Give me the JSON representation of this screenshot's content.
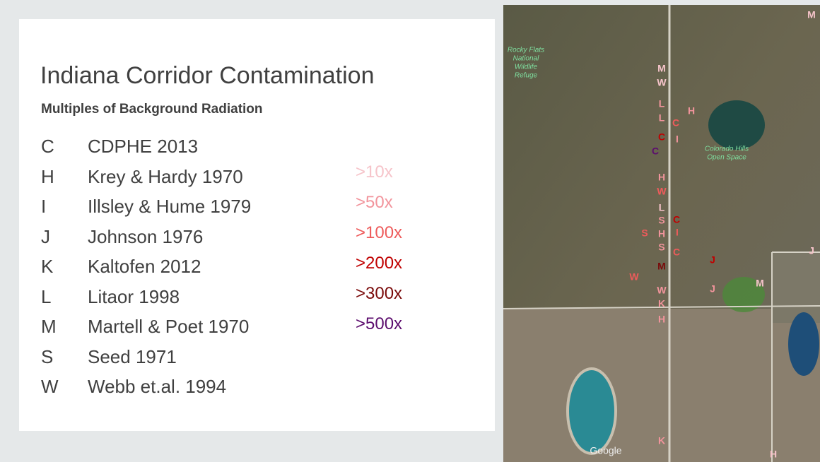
{
  "header": {
    "title": "Indiana Corridor Contamination",
    "subtitle": "Multiples of Background Radiation"
  },
  "sources": [
    {
      "code": "C",
      "name": "CDPHE 2013"
    },
    {
      "code": "H",
      "name": "Krey & Hardy 1970"
    },
    {
      "code": "I",
      "name": "Illsley & Hume 1979"
    },
    {
      "code": "J",
      "name": "Johnson 1976"
    },
    {
      "code": "K",
      "name": "Kaltofen 2012"
    },
    {
      "code": "L",
      "name": "Litaor 1998"
    },
    {
      "code": "M",
      "name": "Martell & Poet 1970"
    },
    {
      "code": "S",
      "name": "Seed 1971"
    },
    {
      "code": "W",
      "name": "Webb et.al. 1994"
    }
  ],
  "levels": [
    {
      "label": ">10x",
      "color": "#f6c4ca"
    },
    {
      "label": ">50x",
      "color": "#f2949c"
    },
    {
      "label": ">100x",
      "color": "#ee5b5b"
    },
    {
      "label": ">200x",
      "color": "#c00000"
    },
    {
      "label": ">300x",
      "color": "#7a0a0a"
    },
    {
      "label": ">500x",
      "color": "#5c0d6e"
    }
  ],
  "map": {
    "places": [
      "Rocky Flats",
      "National",
      "Wildlife",
      "Refuge",
      "Colorado Hills",
      "Open Space",
      "Google"
    ],
    "markers": [
      {
        "code": "M",
        "color": "#f6c4ca"
      },
      {
        "code": "W",
        "color": "#f6c4ca"
      },
      {
        "code": "L",
        "color": "#f2949c"
      },
      {
        "code": "L",
        "color": "#f2949c"
      },
      {
        "code": "C",
        "color": "#c00000"
      },
      {
        "code": "C",
        "color": "#5c0d6e"
      },
      {
        "code": "H",
        "color": "#f2949c"
      },
      {
        "code": "W",
        "color": "#ee5b5b"
      },
      {
        "code": "L",
        "color": "#f6c4ca"
      },
      {
        "code": "S",
        "color": "#f2949c"
      },
      {
        "code": "H",
        "color": "#f2949c"
      },
      {
        "code": "S",
        "color": "#f2949c"
      },
      {
        "code": "M",
        "color": "#7a0a0a"
      },
      {
        "code": "W",
        "color": "#f2949c"
      },
      {
        "code": "K",
        "color": "#f2949c"
      },
      {
        "code": "H",
        "color": "#f2949c"
      },
      {
        "code": "K",
        "color": "#f2949c"
      },
      {
        "code": "C",
        "color": "#ee5b5b"
      },
      {
        "code": "I",
        "color": "#f2949c"
      },
      {
        "code": "H",
        "color": "#f2949c"
      },
      {
        "code": "C",
        "color": "#c00000"
      },
      {
        "code": "I",
        "color": "#ee5b5b"
      },
      {
        "code": "C",
        "color": "#ee5b5b"
      },
      {
        "code": "J",
        "color": "#c00000"
      },
      {
        "code": "J",
        "color": "#f2949c"
      },
      {
        "code": "M",
        "color": "#f6c4ca"
      },
      {
        "code": "W",
        "color": "#ee5b5b"
      },
      {
        "code": "S",
        "color": "#ee5b5b"
      },
      {
        "code": "J",
        "color": "#f6c4ca"
      },
      {
        "code": "M",
        "color": "#f6c4ca"
      },
      {
        "code": "H",
        "color": "#f6c4ca"
      }
    ]
  }
}
